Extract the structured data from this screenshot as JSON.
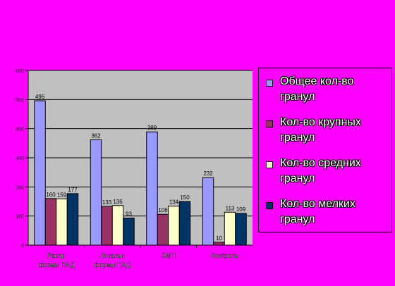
{
  "chart_data": {
    "type": "bar",
    "categories": [
      "Распр формы ПАД",
      "Локальн формы ПАД",
      "ЭМП",
      "Контроль"
    ],
    "series": [
      {
        "name": "Общее кол-во гранул",
        "values": [
          496,
          362,
          389,
          232
        ],
        "color": "#9999ff"
      },
      {
        "name": "Кол-во крупных гранул",
        "values": [
          160,
          133,
          106,
          10
        ],
        "color": "#993366"
      },
      {
        "name": "Кол-во средних гранул",
        "values": [
          159,
          136,
          134,
          113
        ],
        "color": "#ffffcc"
      },
      {
        "name": "Кол-во мелких гранул",
        "values": [
          177,
          93,
          150,
          109
        ],
        "color": "#003366"
      }
    ],
    "ylim": [
      0,
      600
    ],
    "yticks": [
      0,
      100,
      200,
      300,
      400,
      500,
      600
    ],
    "grid": true,
    "legend_position": "right",
    "plot_background": "#c0c0c0",
    "data_labels": true
  }
}
